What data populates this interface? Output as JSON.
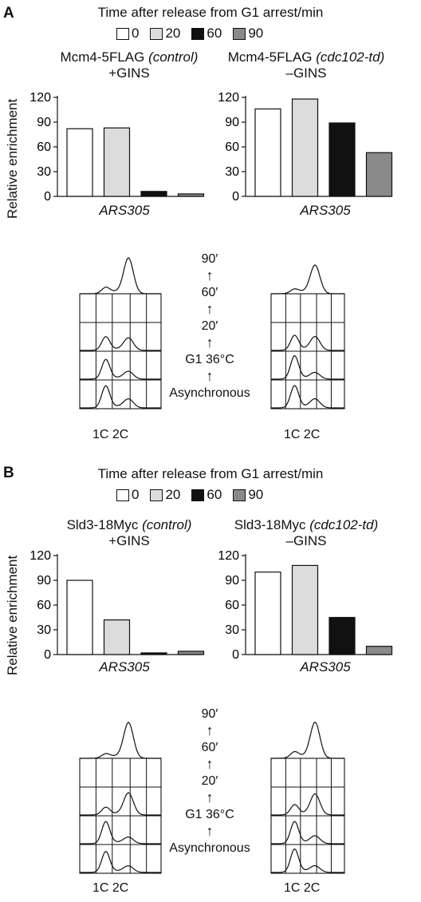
{
  "colors": {
    "t0": "#ffffff",
    "t20": "#dcdcdc",
    "t60": "#111111",
    "t90": "#8a8a8a"
  },
  "legend": {
    "title": "Time after release from G1 arrest/min",
    "items": [
      {
        "label": "0",
        "color": "#ffffff"
      },
      {
        "label": "20",
        "color": "#dcdcdc"
      },
      {
        "label": "60",
        "color": "#111111"
      },
      {
        "label": "90",
        "color": "#8a8a8a"
      }
    ]
  },
  "ylabel": "Relative enrichment",
  "xlabel": "ARS305",
  "timeline": [
    "90′",
    "60′",
    "20′",
    "G1 36°C",
    "Asynchronous"
  ],
  "dna_labels": "1C 2C",
  "panels": [
    {
      "label": "A",
      "left_title": {
        "name": "Mcm4-5FLAG",
        "strain": "(control)",
        "sub": "+GINS"
      },
      "right_title": {
        "name": "Mcm4-5FLAG",
        "strain": "(cdc102-td)",
        "sub": "–GINS"
      }
    },
    {
      "label": "B",
      "left_title": {
        "name": "Sld3-18Myc",
        "strain": "(control)",
        "sub": "+GINS"
      },
      "right_title": {
        "name": "Sld3-18Myc",
        "strain": "(cdc102-td)",
        "sub": "–GINS"
      }
    }
  ],
  "chart_data": [
    {
      "type": "bar",
      "panel": "A",
      "title": "Mcm4-5FLAG (control) +GINS",
      "xlabel": "ARS305",
      "ylabel": "Relative enrichment",
      "categories": [
        "0",
        "20",
        "60",
        "90"
      ],
      "values": [
        82,
        83,
        6,
        3
      ],
      "ylim": [
        0,
        120
      ],
      "yticks": [
        0,
        30,
        60,
        90,
        120
      ]
    },
    {
      "type": "bar",
      "panel": "A",
      "title": "Mcm4-5FLAG (cdc102-td) –GINS",
      "xlabel": "ARS305",
      "ylabel": "",
      "categories": [
        "0",
        "20",
        "60",
        "90"
      ],
      "values": [
        106,
        118,
        89,
        53
      ],
      "ylim": [
        0,
        120
      ],
      "yticks": [
        0,
        30,
        60,
        90,
        120
      ]
    },
    {
      "type": "bar",
      "panel": "B",
      "title": "Sld3-18Myc (control) +GINS",
      "xlabel": "ARS305",
      "ylabel": "Relative enrichment",
      "categories": [
        "0",
        "20",
        "60",
        "90"
      ],
      "values": [
        90,
        42,
        2,
        4
      ],
      "ylim": [
        0,
        120
      ],
      "yticks": [
        0,
        30,
        60,
        90,
        120
      ]
    },
    {
      "type": "bar",
      "panel": "B",
      "title": "Sld3-18Myc (cdc102-td) –GINS",
      "xlabel": "ARS305",
      "ylabel": "",
      "categories": [
        "0",
        "20",
        "60",
        "90"
      ],
      "values": [
        100,
        108,
        45,
        10
      ],
      "ylim": [
        0,
        120
      ],
      "yticks": [
        0,
        30,
        60,
        90,
        120
      ]
    }
  ]
}
